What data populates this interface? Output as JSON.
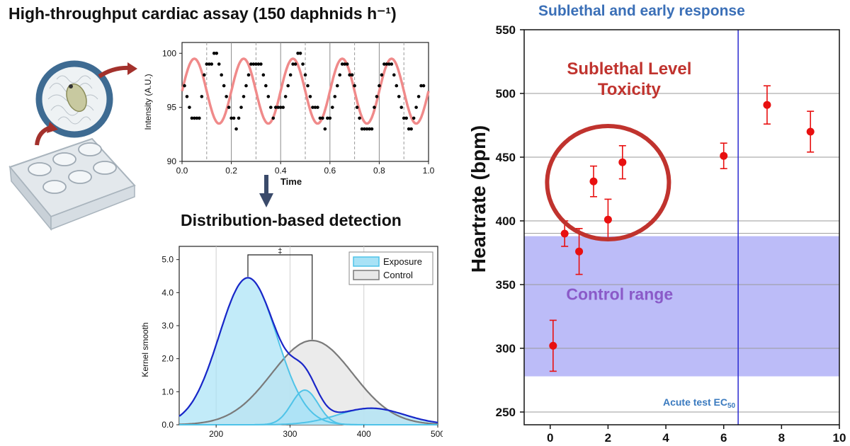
{
  "left": {
    "title": "High-throughput cardiac assay (150 daphnids h⁻¹)",
    "subtitle": "Distribution-based detection",
    "illustration": {
      "icons": [
        "multiwell-plate-icon",
        "daphnia-icon",
        "arrow-icon"
      ]
    }
  },
  "right": {
    "title": "Sublethal and early response"
  },
  "chart_data": [
    {
      "type": "line",
      "xlabel": "Time",
      "ylabel": "Intensity (A.U.)",
      "xlim": [
        0.0,
        1.0
      ],
      "ylim": [
        90,
        101
      ],
      "xticks": [
        "0.0",
        "0.2",
        "0.4",
        "0.6",
        "0.8",
        "1.0"
      ],
      "yticks": [
        "90",
        "95",
        "100"
      ],
      "grid": "vertical dashed lines at 0.1, 0.3, 0.5, 0.7, 0.9; solid at 0.2, 0.4, 0.6, 0.8",
      "colors": {
        "fit": "#f08a8a",
        "points": "#000000"
      },
      "fit": {
        "mean": 96.5,
        "amplitude": 3.0,
        "period": 0.2,
        "phase_peak_at": 0.05
      },
      "points": [
        [
          0.01,
          97
        ],
        [
          0.02,
          96
        ],
        [
          0.03,
          95
        ],
        [
          0.04,
          94
        ],
        [
          0.05,
          94
        ],
        [
          0.06,
          94
        ],
        [
          0.07,
          94
        ],
        [
          0.08,
          96
        ],
        [
          0.09,
          98
        ],
        [
          0.1,
          99
        ],
        [
          0.11,
          99
        ],
        [
          0.12,
          99
        ],
        [
          0.13,
          100
        ],
        [
          0.14,
          100
        ],
        [
          0.15,
          99
        ],
        [
          0.16,
          98
        ],
        [
          0.17,
          97
        ],
        [
          0.18,
          96
        ],
        [
          0.19,
          95
        ],
        [
          0.2,
          94
        ],
        [
          0.21,
          94
        ],
        [
          0.22,
          93
        ],
        [
          0.23,
          94
        ],
        [
          0.24,
          95
        ],
        [
          0.25,
          96
        ],
        [
          0.26,
          97
        ],
        [
          0.27,
          98
        ],
        [
          0.28,
          99
        ],
        [
          0.29,
          99
        ],
        [
          0.3,
          99
        ],
        [
          0.31,
          99
        ],
        [
          0.32,
          99
        ],
        [
          0.33,
          98
        ],
        [
          0.34,
          97
        ],
        [
          0.35,
          96
        ],
        [
          0.36,
          95
        ],
        [
          0.37,
          94
        ],
        [
          0.38,
          95
        ],
        [
          0.39,
          95
        ],
        [
          0.4,
          95
        ],
        [
          0.41,
          95
        ],
        [
          0.42,
          96
        ],
        [
          0.43,
          97
        ],
        [
          0.44,
          98
        ],
        [
          0.45,
          99
        ],
        [
          0.46,
          99
        ],
        [
          0.47,
          100
        ],
        [
          0.48,
          100
        ],
        [
          0.49,
          99
        ],
        [
          0.5,
          98
        ],
        [
          0.51,
          97
        ],
        [
          0.52,
          96
        ],
        [
          0.53,
          95
        ],
        [
          0.54,
          95
        ],
        [
          0.55,
          95
        ],
        [
          0.56,
          94
        ],
        [
          0.57,
          94
        ],
        [
          0.58,
          93
        ],
        [
          0.59,
          94
        ],
        [
          0.6,
          94
        ],
        [
          0.61,
          95
        ],
        [
          0.62,
          96
        ],
        [
          0.63,
          97
        ],
        [
          0.64,
          98
        ],
        [
          0.65,
          99
        ],
        [
          0.66,
          99
        ],
        [
          0.67,
          99
        ],
        [
          0.68,
          98
        ],
        [
          0.69,
          98
        ],
        [
          0.7,
          97
        ],
        [
          0.71,
          95
        ],
        [
          0.72,
          94
        ],
        [
          0.73,
          93
        ],
        [
          0.74,
          93
        ],
        [
          0.75,
          93
        ],
        [
          0.76,
          93
        ],
        [
          0.77,
          93
        ],
        [
          0.78,
          95
        ],
        [
          0.79,
          96
        ],
        [
          0.8,
          97
        ],
        [
          0.81,
          98
        ],
        [
          0.82,
          99
        ],
        [
          0.83,
          99
        ],
        [
          0.84,
          99
        ],
        [
          0.85,
          99
        ],
        [
          0.86,
          98
        ],
        [
          0.87,
          97
        ],
        [
          0.88,
          96
        ],
        [
          0.89,
          95
        ],
        [
          0.9,
          94
        ],
        [
          0.91,
          94
        ],
        [
          0.92,
          93
        ],
        [
          0.93,
          93
        ],
        [
          0.94,
          94
        ],
        [
          0.95,
          95
        ],
        [
          0.96,
          96
        ],
        [
          0.97,
          97
        ],
        [
          0.98,
          97
        ]
      ]
    },
    {
      "type": "area",
      "xlabel": "",
      "ylabel": "Kernel smooth",
      "xlim": [
        150,
        500
      ],
      "ylim": [
        0,
        5.4
      ],
      "xticks": [
        "200",
        "300",
        "400",
        "500"
      ],
      "yticks": [
        "0.0",
        "1.0",
        "2.0",
        "3.0",
        "4.0",
        "5.0"
      ],
      "legend": {
        "placement": "top-right",
        "entries": [
          "Exposure",
          "Control"
        ]
      },
      "annotation": "‡",
      "colors": {
        "exposure_fill": "#a8e2f6",
        "exposure_line": "#4fc3e8",
        "exposure_total": "#1a26c8",
        "control_fill": "#e8e8e8",
        "control_line": "#7a7a7a"
      },
      "series": [
        {
          "name": "Exposure",
          "components": [
            {
              "mean": 243,
              "sd": 39,
              "peak": 4.45
            },
            {
              "mean": 320,
              "sd": 18,
              "peak": 1.05
            },
            {
              "mean": 410,
              "sd": 45,
              "peak": 0.5
            }
          ]
        },
        {
          "name": "Control",
          "components": [
            {
              "mean": 330,
              "sd": 55,
              "peak": 2.55
            }
          ]
        }
      ]
    },
    {
      "type": "scatter",
      "xlabel": "",
      "ylabel": "Heartrate (bpm)",
      "xlim": [
        -0.9,
        10
      ],
      "ylim": [
        240,
        550
      ],
      "xticks": [
        "0",
        "2",
        "4",
        "6",
        "8",
        "10"
      ],
      "yticks": [
        "250",
        "300",
        "350",
        "400",
        "450",
        "500",
        "550"
      ],
      "grid": "horizontal",
      "colors": {
        "points": "#e81010",
        "control_band": "#bcbcf8",
        "ec50_line": "#2a2ad0",
        "circle": "#c0332e",
        "sublethal_text": "#c0332e",
        "control_text": "#8a5ac8",
        "ec50_text": "#3a7abf"
      },
      "points": [
        {
          "x": 0.1,
          "y": 302,
          "err": 20
        },
        {
          "x": 0.5,
          "y": 390,
          "err": 10
        },
        {
          "x": 1.0,
          "y": 376,
          "err": 18
        },
        {
          "x": 1.5,
          "y": 431,
          "err": 12
        },
        {
          "x": 2.0,
          "y": 401,
          "err": 16
        },
        {
          "x": 2.5,
          "y": 446,
          "err": 13
        },
        {
          "x": 6.0,
          "y": 451,
          "err": 10
        },
        {
          "x": 7.5,
          "y": 491,
          "err": 15
        },
        {
          "x": 9.0,
          "y": 470,
          "err": 16
        }
      ],
      "control_range": {
        "label": "Control range",
        "y": [
          278,
          388
        ]
      },
      "ec50": {
        "x": 6.5,
        "label": "Acute test EC",
        "label_sub": "50"
      },
      "sublethal": {
        "label_line1": "Sublethal Level",
        "label_line2": "Toxicity",
        "center_x": 2.0,
        "center_y": 430
      }
    }
  ]
}
